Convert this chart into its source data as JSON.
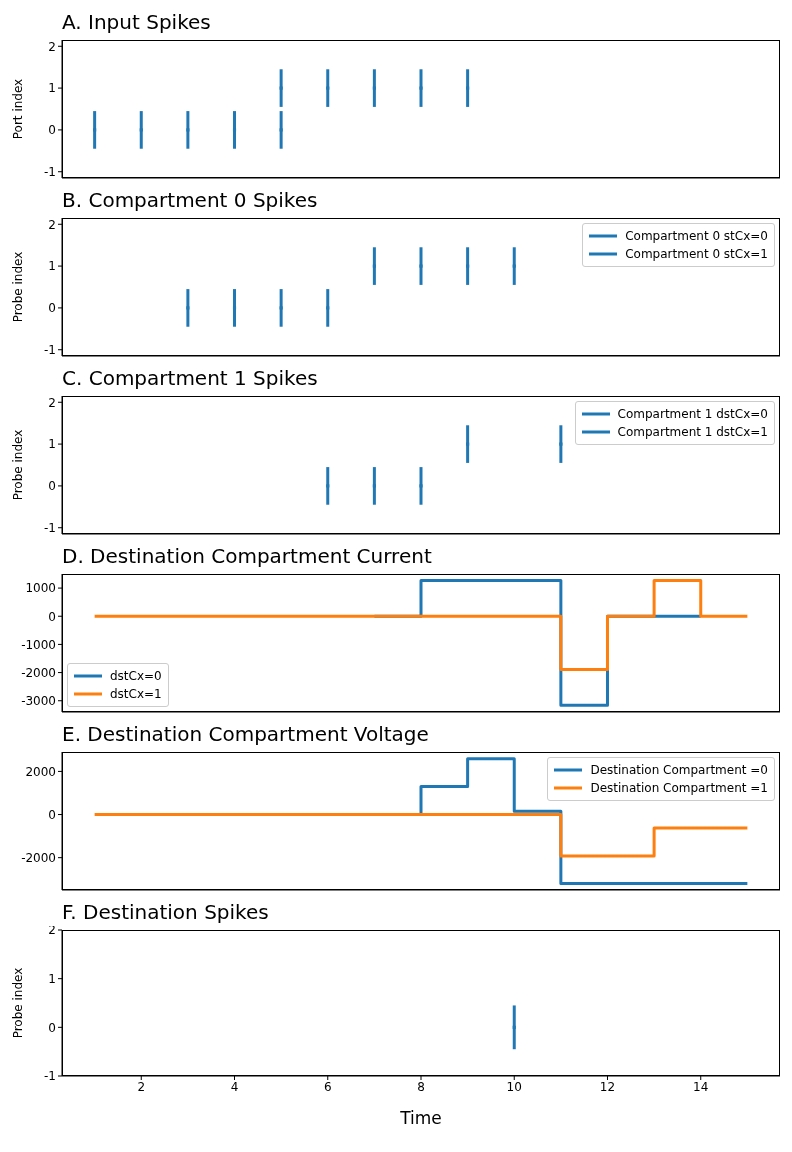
{
  "chart_data": [
    {
      "type": "scatter",
      "title": "A. Input Spikes",
      "ylabel": "Port index",
      "xlim": [
        0.3,
        15.7
      ],
      "xticks": [
        2,
        4,
        6,
        8,
        10,
        12,
        14
      ],
      "ylim": [
        -1.15,
        2.15
      ],
      "yticks": [
        -1,
        0,
        1,
        2
      ],
      "tick_labels": "y",
      "marker": "square",
      "series": [
        {
          "color": "#1f77b4",
          "x": [
            1,
            2,
            3,
            4,
            5
          ],
          "values": [
            0,
            0,
            0,
            0,
            0
          ],
          "errors": [
            0.45,
            0.45,
            0.45,
            0.45,
            0.45
          ]
        },
        {
          "color": "#1f77b4",
          "x": [
            5,
            6,
            7,
            8,
            9
          ],
          "values": [
            1,
            1,
            1,
            1,
            1
          ],
          "errors": [
            0.45,
            0.45,
            0.45,
            0.45,
            0.45
          ]
        }
      ]
    },
    {
      "type": "scatter",
      "title": "B. Compartment 0 Spikes",
      "ylabel": "Probe index",
      "xlim": [
        0.3,
        15.7
      ],
      "xticks": [
        2,
        4,
        6,
        8,
        10,
        12,
        14
      ],
      "ylim": [
        -1.15,
        2.15
      ],
      "yticks": [
        -1,
        0,
        1,
        2
      ],
      "tick_labels": "y",
      "legend": "top right",
      "marker": "square",
      "series": [
        {
          "name": "Compartment 0 stCx=0",
          "color": "#1f77b4",
          "x": [
            3,
            4,
            5,
            6
          ],
          "values": [
            0,
            0,
            0,
            0
          ],
          "errors": [
            0.45,
            0.45,
            0.45,
            0.45
          ]
        },
        {
          "name": "Compartment 0 stCx=1",
          "color": "#1f77b4",
          "x": [
            7,
            8,
            9,
            10
          ],
          "values": [
            1,
            1,
            1,
            1
          ],
          "errors": [
            0.45,
            0.45,
            0.45,
            0.45
          ]
        }
      ]
    },
    {
      "type": "scatter",
      "title": "C. Compartment 1 Spikes",
      "ylabel": "Probe index",
      "xlim": [
        0.3,
        15.7
      ],
      "xticks": [
        2,
        4,
        6,
        8,
        10,
        12,
        14
      ],
      "ylim": [
        -1.15,
        2.15
      ],
      "yticks": [
        -1,
        0,
        1,
        2
      ],
      "tick_labels": "y",
      "legend": "top right",
      "marker": "square",
      "series": [
        {
          "name": "Compartment 1 dstCx=0",
          "color": "#1f77b4",
          "x": [
            6,
            7,
            8
          ],
          "values": [
            0,
            0,
            0
          ],
          "errors": [
            0.45,
            0.45,
            0.45
          ]
        },
        {
          "name": "Compartment 1 dstCx=1",
          "color": "#1f77b4",
          "x": [
            9,
            11
          ],
          "values": [
            1,
            1
          ],
          "errors": [
            0.45,
            0.45
          ]
        }
      ]
    },
    {
      "type": "step",
      "title": "D. Destination Compartment Current",
      "x": [
        1,
        2,
        3,
        4,
        5,
        6,
        7,
        8,
        9,
        10,
        11,
        12,
        13,
        14,
        15
      ],
      "xlim": [
        0.3,
        15.7
      ],
      "xticks": [
        2,
        4,
        6,
        8,
        10,
        12,
        14
      ],
      "ylim": [
        -3400,
        1500
      ],
      "yticks": [
        -3000,
        -2000,
        -1000,
        0,
        1000
      ],
      "tick_labels": "y",
      "legend": "bottom left",
      "series": [
        {
          "name": "dstCx=0",
          "color": "#1f77b4",
          "values": [
            null,
            null,
            null,
            null,
            null,
            null,
            0,
            1270,
            1270,
            1270,
            -3160,
            0,
            0,
            0,
            null
          ]
        },
        {
          "name": "dstCx=1",
          "color": "#ff7f0e",
          "values": [
            0,
            0,
            0,
            0,
            0,
            0,
            0,
            0,
            0,
            0,
            -1890,
            0,
            1270,
            0,
            0
          ]
        }
      ]
    },
    {
      "type": "step",
      "title": "E. Destination Compartment Voltage",
      "x": [
        1,
        2,
        3,
        4,
        5,
        6,
        7,
        8,
        9,
        10,
        11,
        12,
        13,
        14,
        15
      ],
      "xlim": [
        0.3,
        15.7
      ],
      "xticks": [
        2,
        4,
        6,
        8,
        10,
        12,
        14
      ],
      "ylim": [
        -3500,
        2900
      ],
      "yticks": [
        -2000,
        0,
        2000
      ],
      "tick_labels": "y",
      "legend": "top right",
      "series": [
        {
          "name": "Destination Compartment =0",
          "color": "#1f77b4",
          "values": [
            null,
            null,
            null,
            null,
            null,
            null,
            0,
            1300,
            2590,
            150,
            -3200,
            -3200,
            -3200,
            -3200,
            -3200
          ]
        },
        {
          "name": "Destination Compartment =1",
          "color": "#ff7f0e",
          "values": [
            0,
            0,
            0,
            0,
            0,
            0,
            0,
            0,
            0,
            0,
            -1920,
            -1920,
            -630,
            -630,
            -630
          ]
        }
      ]
    },
    {
      "type": "scatter",
      "title": "F. Destination Spikes",
      "ylabel": "Probe index",
      "xlabel": "Time",
      "xlim": [
        0.3,
        15.7
      ],
      "xticks": [
        2,
        4,
        6,
        8,
        10,
        12,
        14
      ],
      "ylim": [
        -1,
        2
      ],
      "yticks": [
        -1,
        0,
        1,
        2
      ],
      "marker": "square",
      "series": [
        {
          "color": "#1f77b4",
          "x": [
            10
          ],
          "values": [
            0
          ],
          "errors": [
            0.45
          ]
        }
      ]
    }
  ]
}
